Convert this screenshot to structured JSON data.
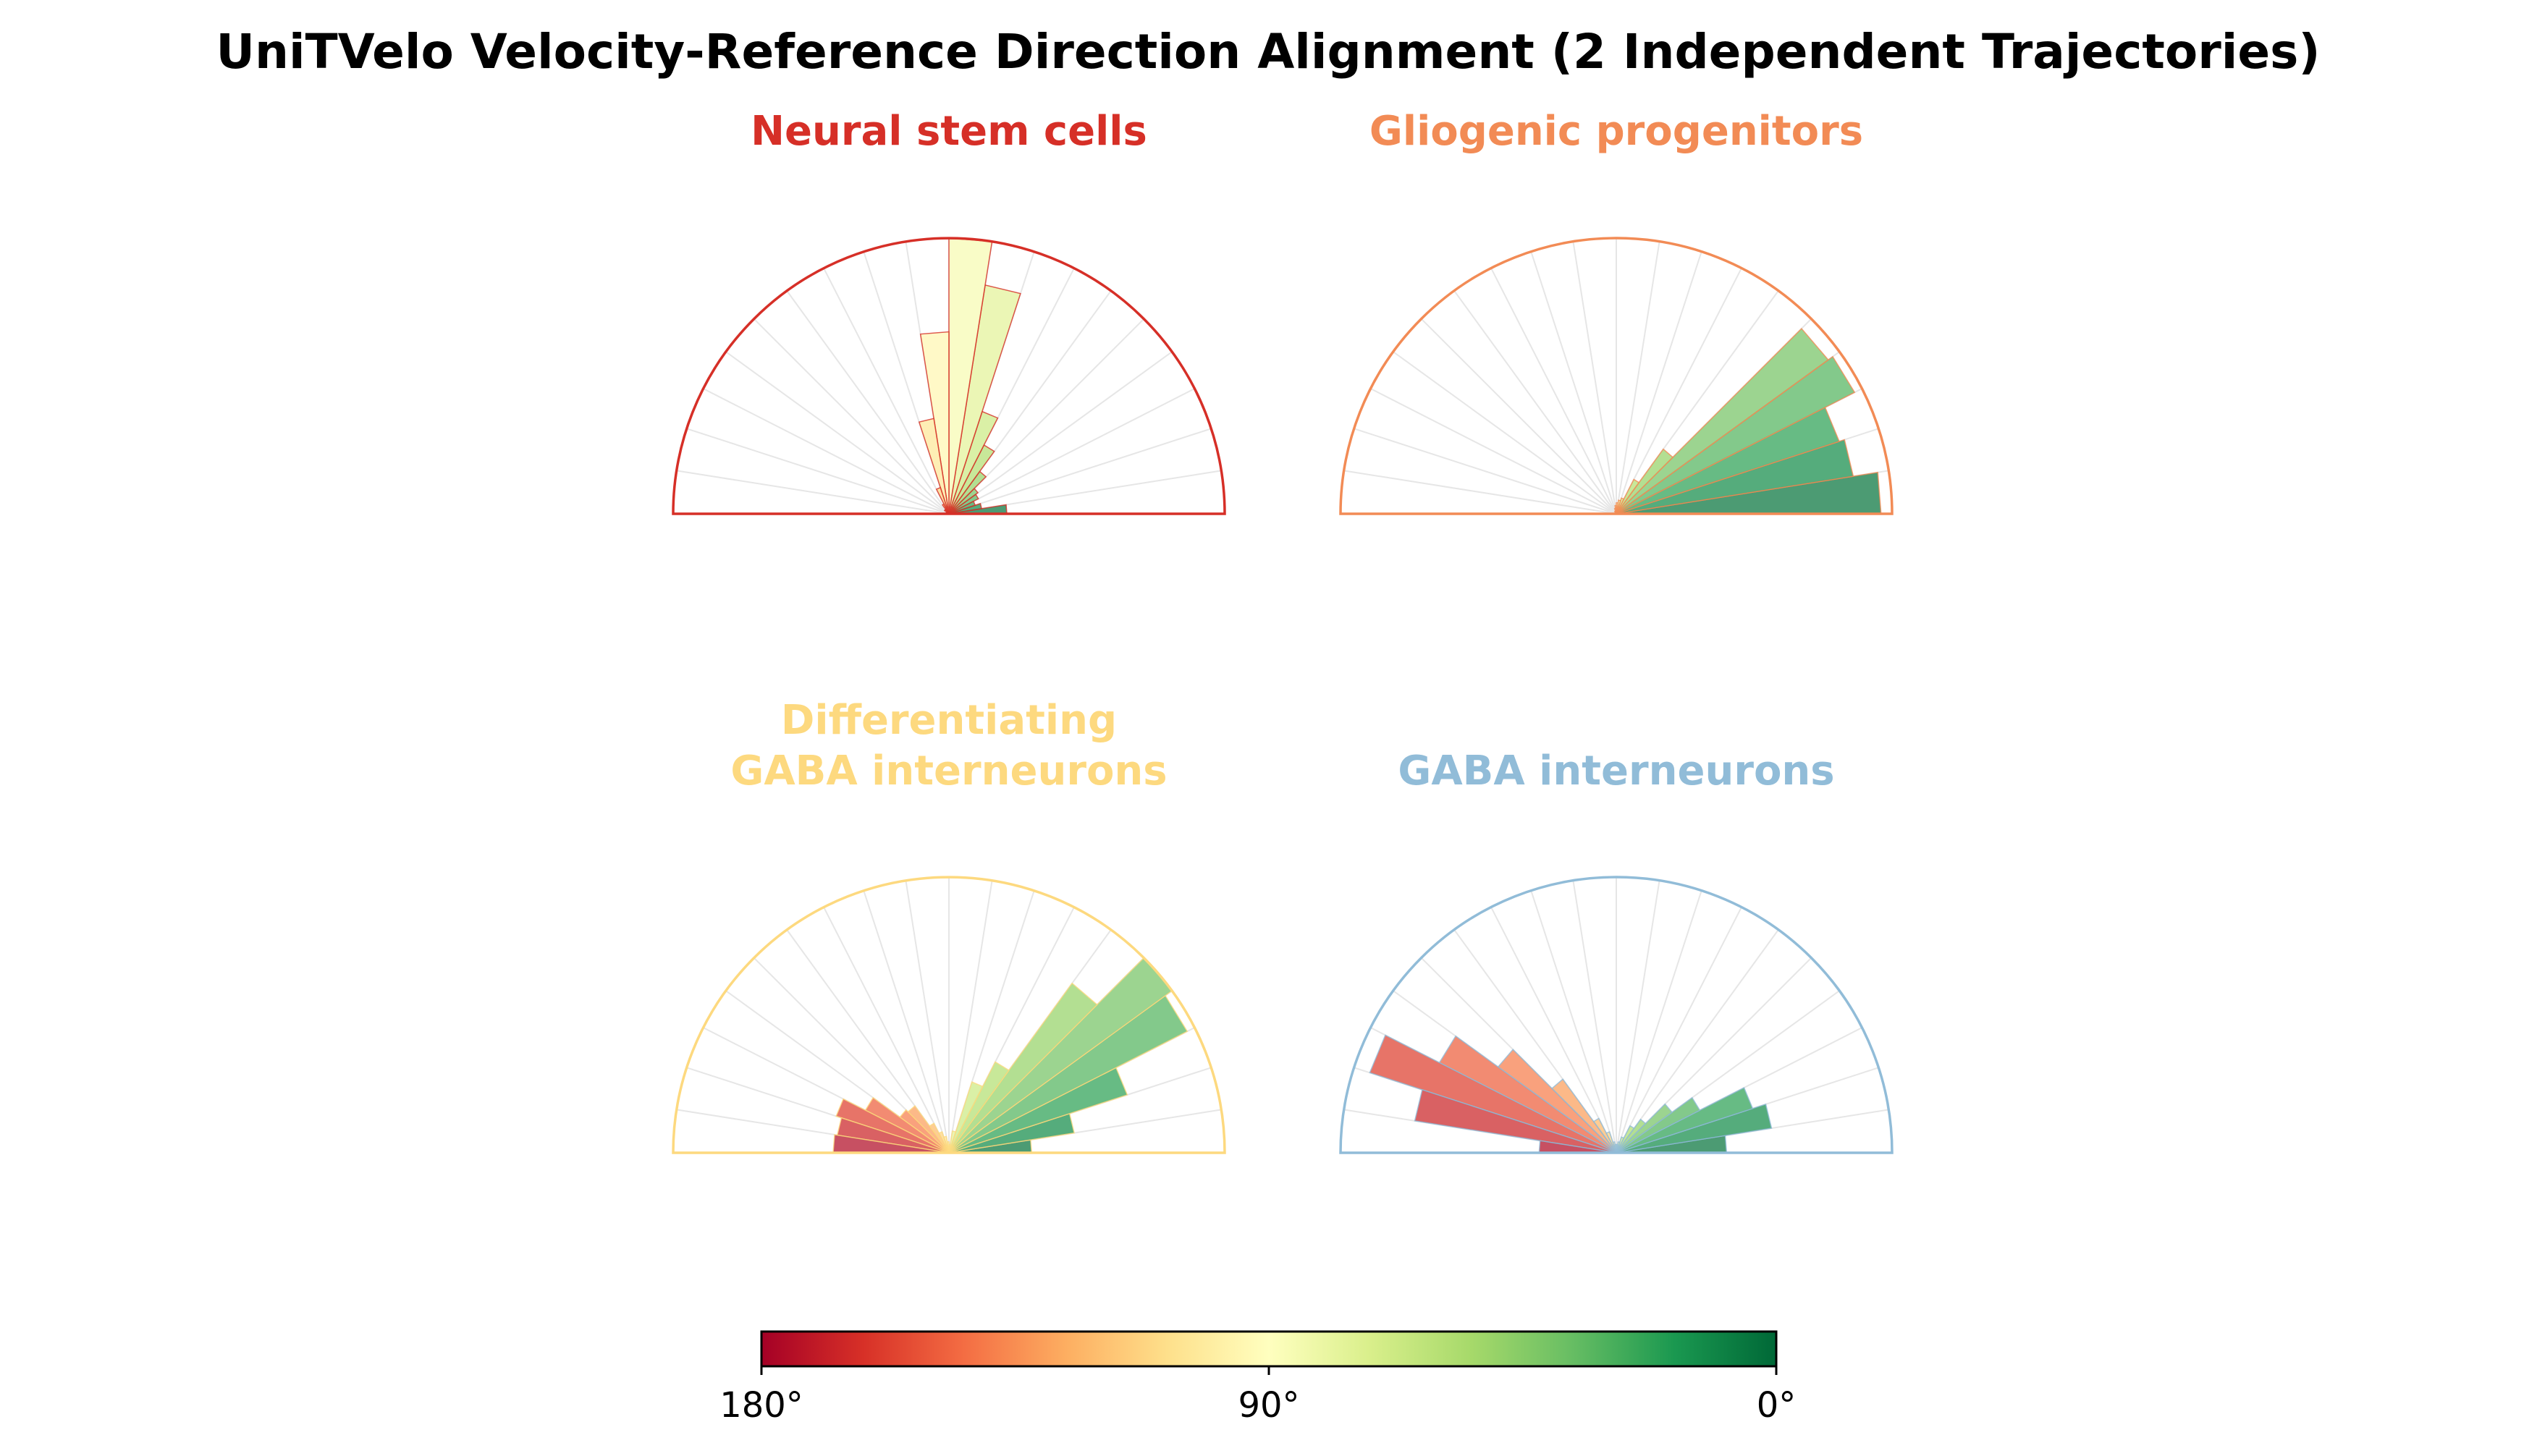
{
  "title": "UniTVelo Velocity-Reference Direction Alignment (2 Independent Trajectories)",
  "chart_data": [
    {
      "type": "polar-bar",
      "title": "Neural stem cells",
      "title_color": "#d62f27",
      "angle_range": [
        0,
        180
      ],
      "bin_width_deg": 9,
      "bins_deg": [
        4.5,
        13.5,
        22.5,
        31.5,
        40.5,
        49.5,
        58.5,
        67.5,
        76.5,
        85.5,
        94.5,
        103.5,
        112.5,
        121.5,
        130.5,
        139.5,
        148.5,
        157.5,
        166.5,
        175.5
      ],
      "values": [
        0.21,
        0.12,
        0.1,
        0.12,
        0.13,
        0.19,
        0.28,
        0.39,
        0.84,
        1.0,
        0.66,
        0.35,
        0.1,
        0.04,
        0.02,
        0.02,
        0.01,
        0.01,
        0.0,
        0.0
      ]
    },
    {
      "type": "polar-bar",
      "title": "Gliogenic progenitors",
      "title_color": "#f28b55",
      "angle_range": [
        0,
        180
      ],
      "bin_width_deg": 9,
      "bins_deg": [
        4.5,
        13.5,
        22.5,
        31.5,
        40.5,
        49.5,
        58.5,
        67.5,
        76.5,
        85.5,
        94.5,
        103.5,
        112.5,
        121.5,
        130.5,
        139.5,
        148.5,
        157.5,
        166.5,
        175.5
      ],
      "values": [
        0.96,
        0.87,
        0.85,
        0.97,
        0.95,
        0.29,
        0.14,
        0.06,
        0.05,
        0.04,
        0.03,
        0.02,
        0.01,
        0.01,
        0.0,
        0.0,
        0.0,
        0.0,
        0.0,
        0.0
      ]
    },
    {
      "type": "polar-bar",
      "title": "Differentiating\nGABA interneurons",
      "title_color": "#fdd97f",
      "angle_range": [
        0,
        180
      ],
      "bin_width_deg": 9,
      "bins_deg": [
        4.5,
        13.5,
        22.5,
        31.5,
        40.5,
        49.5,
        58.5,
        67.5,
        76.5,
        85.5,
        94.5,
        103.5,
        112.5,
        121.5,
        130.5,
        139.5,
        148.5,
        157.5,
        166.5,
        175.5
      ],
      "values": [
        0.3,
        0.46,
        0.68,
        0.97,
        1.0,
        0.76,
        0.37,
        0.27,
        0.08,
        0.03,
        0.04,
        0.06,
        0.08,
        0.12,
        0.21,
        0.22,
        0.34,
        0.43,
        0.41,
        0.42
      ]
    },
    {
      "type": "polar-bar",
      "title": "GABA interneurons",
      "title_color": "#91bcd8",
      "angle_range": [
        0,
        180
      ],
      "bin_width_deg": 9,
      "bins_deg": [
        4.5,
        13.5,
        22.5,
        31.5,
        40.5,
        49.5,
        58.5,
        67.5,
        76.5,
        85.5,
        94.5,
        103.5,
        112.5,
        121.5,
        130.5,
        139.5,
        148.5,
        157.5,
        166.5,
        175.5
      ],
      "values": [
        0.4,
        0.57,
        0.52,
        0.34,
        0.25,
        0.15,
        0.11,
        0.06,
        0.04,
        0.03,
        0.03,
        0.04,
        0.08,
        0.14,
        0.33,
        0.53,
        0.72,
        0.94,
        0.74,
        0.28
      ]
    }
  ],
  "colorbar": {
    "colormap": "RdYlGn",
    "tick_labels": [
      "180°",
      "90°",
      "0°"
    ],
    "tick_values": [
      180,
      90,
      0
    ],
    "stops": [
      "#a50026",
      "#d73027",
      "#f46d43",
      "#fdae61",
      "#fee08b",
      "#ffffbf",
      "#d9ef8b",
      "#a6d96a",
      "#66bd63",
      "#1a9850",
      "#006837"
    ]
  }
}
